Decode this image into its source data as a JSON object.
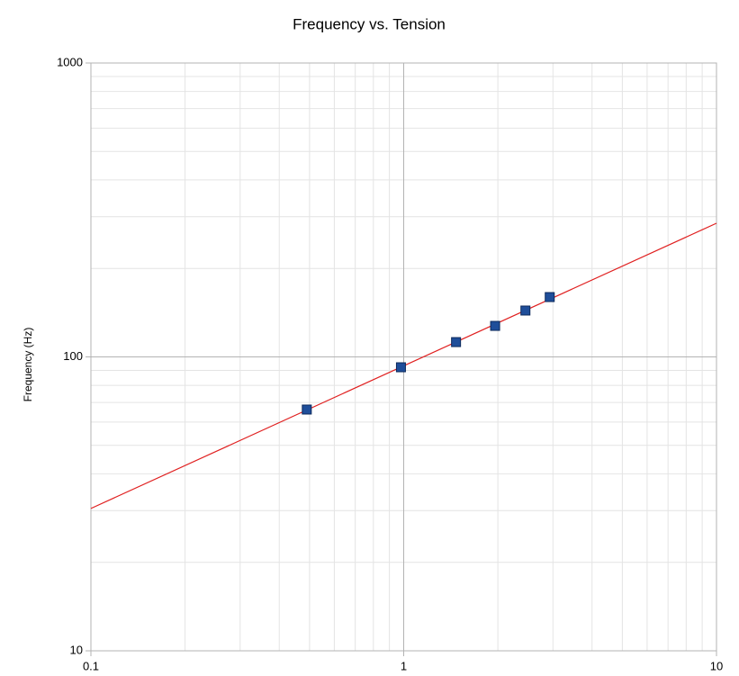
{
  "chart_data": {
    "type": "scatter",
    "title": "Frequency vs. Tension",
    "ylabel": "Frequency (Hz)",
    "xlog": true,
    "ylog": true,
    "grid": true,
    "minor_grid": true,
    "xlim": [
      0.1,
      10
    ],
    "ylim": [
      10,
      1000
    ],
    "xticks": [
      0.1,
      1,
      10
    ],
    "yticks": [
      10,
      100,
      1000
    ],
    "series": [
      {
        "color": "#1f4e9a",
        "x": [
          0.49,
          0.98,
          1.47,
          1.96,
          2.45,
          2.93
        ],
        "values": [
          66.2,
          92.2,
          112.3,
          127.5,
          143.8,
          159.8
        ]
      }
    ],
    "trendline": {
      "color": "#e02020",
      "x": [
        0.1,
        10
      ],
      "values": [
        30.5,
        285
      ]
    }
  }
}
